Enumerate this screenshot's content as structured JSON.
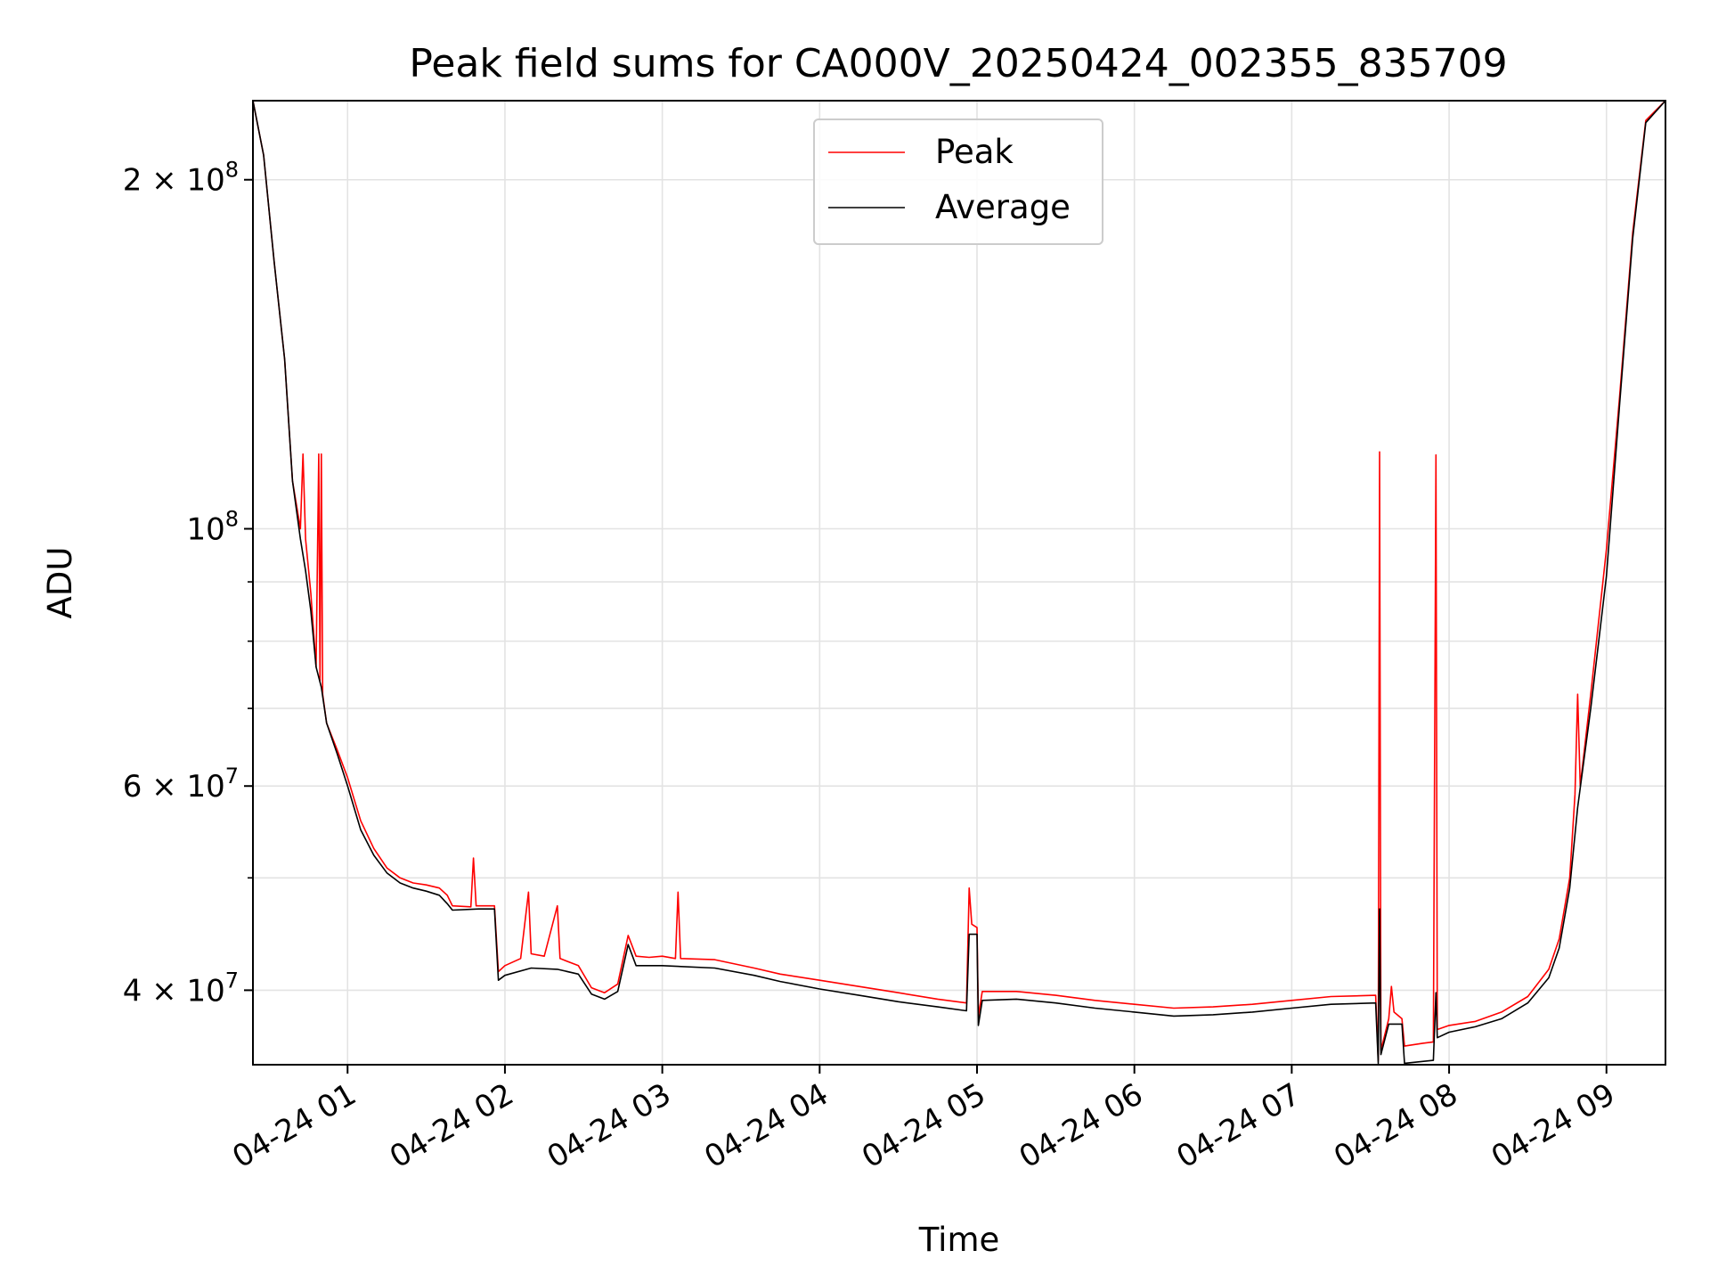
{
  "chart_data": {
    "type": "line",
    "title": "Peak field sums for CA000V_20250424_002355_835709",
    "xlabel": "Time",
    "ylabel": "ADU",
    "yscale": "log",
    "ylim": [
      34500000,
      234000000
    ],
    "xlim": [
      "2025-04-24 00:23:55",
      "2025-04-24 09:22:30"
    ],
    "grid": true,
    "legend_position": "top-center",
    "x_ticks": [
      {
        "value": "2025-04-24 01:00",
        "label": "04-24 01"
      },
      {
        "value": "2025-04-24 02:00",
        "label": "04-24 02"
      },
      {
        "value": "2025-04-24 03:00",
        "label": "04-24 03"
      },
      {
        "value": "2025-04-24 04:00",
        "label": "04-24 04"
      },
      {
        "value": "2025-04-24 05:00",
        "label": "04-24 05"
      },
      {
        "value": "2025-04-24 06:00",
        "label": "04-24 06"
      },
      {
        "value": "2025-04-24 07:00",
        "label": "04-24 07"
      },
      {
        "value": "2025-04-24 08:00",
        "label": "04-24 08"
      },
      {
        "value": "2025-04-24 09:00",
        "label": "04-24 09"
      }
    ],
    "y_ticks": [
      {
        "value": 40000000,
        "base": "4",
        "exp": "7"
      },
      {
        "value": 60000000,
        "base": "6",
        "exp": "7"
      },
      {
        "value": 100000000,
        "base": "",
        "exp": "8"
      },
      {
        "value": 200000000,
        "base": "2",
        "exp": "8"
      }
    ],
    "y_minor_ticks": [
      50000000,
      70000000,
      80000000,
      90000000
    ],
    "series": [
      {
        "name": "Peak",
        "color": "#ff0000",
        "points": [
          [
            "2025-04-24 00:23:55",
            234000000
          ],
          [
            "2025-04-24 00:28:00",
            210000000
          ],
          [
            "2025-04-24 00:32:00",
            170000000
          ],
          [
            "2025-04-24 00:36:00",
            140000000
          ],
          [
            "2025-04-24 00:39:00",
            110000000
          ],
          [
            "2025-04-24 00:42:00",
            100000000
          ],
          [
            "2025-04-24 00:43:00",
            116000000
          ],
          [
            "2025-04-24 00:44:00",
            98000000
          ],
          [
            "2025-04-24 00:46:00",
            88000000
          ],
          [
            "2025-04-24 00:48:00",
            76000000
          ],
          [
            "2025-04-24 00:49:00",
            116000000
          ],
          [
            "2025-04-24 00:49:30",
            74000000
          ],
          [
            "2025-04-24 00:50:00",
            116000000
          ],
          [
            "2025-04-24 00:50:30",
            72000000
          ],
          [
            "2025-04-24 00:52:00",
            68000000
          ],
          [
            "2025-04-24 00:56:00",
            64500000
          ],
          [
            "2025-04-24 01:00:00",
            61000000
          ],
          [
            "2025-04-24 01:05:00",
            56000000
          ],
          [
            "2025-04-24 01:10:00",
            53000000
          ],
          [
            "2025-04-24 01:15:00",
            51000000
          ],
          [
            "2025-04-24 01:20:00",
            50000000
          ],
          [
            "2025-04-24 01:25:00",
            49500000
          ],
          [
            "2025-04-24 01:30:00",
            49300000
          ],
          [
            "2025-04-24 01:35:00",
            49000000
          ],
          [
            "2025-04-24 01:38:00",
            48300000
          ],
          [
            "2025-04-24 01:40:00",
            47300000
          ],
          [
            "2025-04-24 01:47:00",
            47200000
          ],
          [
            "2025-04-24 01:48:00",
            52000000
          ],
          [
            "2025-04-24 01:49:00",
            47300000
          ],
          [
            "2025-04-24 01:56:00",
            47300000
          ],
          [
            "2025-04-24 01:57:30",
            41500000
          ],
          [
            "2025-04-24 02:00:00",
            42000000
          ],
          [
            "2025-04-24 02:06:00",
            42600000
          ],
          [
            "2025-04-24 02:09:00",
            48600000
          ],
          [
            "2025-04-24 02:10:00",
            43000000
          ],
          [
            "2025-04-24 02:15:00",
            42800000
          ],
          [
            "2025-04-24 02:20:00",
            47300000
          ],
          [
            "2025-04-24 02:21:00",
            42600000
          ],
          [
            "2025-04-24 02:28:00",
            42000000
          ],
          [
            "2025-04-24 02:33:00",
            40200000
          ],
          [
            "2025-04-24 02:38:00",
            39800000
          ],
          [
            "2025-04-24 02:43:00",
            40500000
          ],
          [
            "2025-04-24 02:47:00",
            44600000
          ],
          [
            "2025-04-24 02:50:00",
            42800000
          ],
          [
            "2025-04-24 02:55:00",
            42700000
          ],
          [
            "2025-04-24 03:00:00",
            42800000
          ],
          [
            "2025-04-24 03:05:00",
            42600000
          ],
          [
            "2025-04-24 03:06:00",
            48600000
          ],
          [
            "2025-04-24 03:07:00",
            42600000
          ],
          [
            "2025-04-24 03:20:00",
            42500000
          ],
          [
            "2025-04-24 03:35:00",
            41800000
          ],
          [
            "2025-04-24 03:45:00",
            41300000
          ],
          [
            "2025-04-24 04:00:00",
            40800000
          ],
          [
            "2025-04-24 04:15:00",
            40300000
          ],
          [
            "2025-04-24 04:30:00",
            39800000
          ],
          [
            "2025-04-24 04:45:00",
            39300000
          ],
          [
            "2025-04-24 04:56:00",
            39000000
          ],
          [
            "2025-04-24 04:57:00",
            49000000
          ],
          [
            "2025-04-24 04:58:00",
            45600000
          ],
          [
            "2025-04-24 05:00:00",
            45300000
          ],
          [
            "2025-04-24 05:00:30",
            38000000
          ],
          [
            "2025-04-24 05:02:00",
            39900000
          ],
          [
            "2025-04-24 05:15:00",
            39900000
          ],
          [
            "2025-04-24 05:30:00",
            39600000
          ],
          [
            "2025-04-24 05:45:00",
            39200000
          ],
          [
            "2025-04-24 06:00:00",
            38900000
          ],
          [
            "2025-04-24 06:15:00",
            38600000
          ],
          [
            "2025-04-24 06:30:00",
            38700000
          ],
          [
            "2025-04-24 06:45:00",
            38900000
          ],
          [
            "2025-04-24 07:00:00",
            39200000
          ],
          [
            "2025-04-24 07:15:00",
            39500000
          ],
          [
            "2025-04-24 07:32:00",
            39600000
          ],
          [
            "2025-04-24 07:33:00",
            34800000
          ],
          [
            "2025-04-24 07:33:30",
            116500000
          ],
          [
            "2025-04-24 07:34:00",
            35500000
          ],
          [
            "2025-04-24 07:37:00",
            37800000
          ],
          [
            "2025-04-24 07:38:00",
            40300000
          ],
          [
            "2025-04-24 07:39:00",
            38300000
          ],
          [
            "2025-04-24 07:42:00",
            37800000
          ],
          [
            "2025-04-24 07:43:00",
            35800000
          ],
          [
            "2025-04-24 07:50:00",
            36000000
          ],
          [
            "2025-04-24 07:54:00",
            36100000
          ],
          [
            "2025-04-24 07:55:00",
            115800000
          ],
          [
            "2025-04-24 07:55:30",
            37000000
          ],
          [
            "2025-04-24 08:00:00",
            37300000
          ],
          [
            "2025-04-24 08:10:00",
            37600000
          ],
          [
            "2025-04-24 08:20:00",
            38300000
          ],
          [
            "2025-04-24 08:30:00",
            39500000
          ],
          [
            "2025-04-24 08:38:00",
            41700000
          ],
          [
            "2025-04-24 08:42:00",
            44300000
          ],
          [
            "2025-04-24 08:46:00",
            50000000
          ],
          [
            "2025-04-24 08:48:00",
            59000000
          ],
          [
            "2025-04-24 08:49:00",
            72000000
          ],
          [
            "2025-04-24 08:50:00",
            60000000
          ],
          [
            "2025-04-24 08:54:00",
            72000000
          ],
          [
            "2025-04-24 09:00:00",
            96000000
          ],
          [
            "2025-04-24 09:05:00",
            130000000
          ],
          [
            "2025-04-24 09:10:00",
            180000000
          ],
          [
            "2025-04-24 09:15:00",
            225000000
          ],
          [
            "2025-04-24 09:22:30",
            234000000
          ]
        ]
      },
      {
        "name": "Average",
        "color": "#000000",
        "points": [
          [
            "2025-04-24 00:23:55",
            234000000
          ],
          [
            "2025-04-24 00:28:00",
            210000000
          ],
          [
            "2025-04-24 00:32:00",
            170000000
          ],
          [
            "2025-04-24 00:36:00",
            140000000
          ],
          [
            "2025-04-24 00:39:00",
            110000000
          ],
          [
            "2025-04-24 00:42:00",
            98000000
          ],
          [
            "2025-04-24 00:44:00",
            92000000
          ],
          [
            "2025-04-24 00:46:00",
            85000000
          ],
          [
            "2025-04-24 00:48:00",
            76000000
          ],
          [
            "2025-04-24 00:50:00",
            73000000
          ],
          [
            "2025-04-24 00:52:00",
            68000000
          ],
          [
            "2025-04-24 00:56:00",
            64000000
          ],
          [
            "2025-04-24 01:00:00",
            60000000
          ],
          [
            "2025-04-24 01:05:00",
            55000000
          ],
          [
            "2025-04-24 01:10:00",
            52300000
          ],
          [
            "2025-04-24 01:15:00",
            50500000
          ],
          [
            "2025-04-24 01:20:00",
            49500000
          ],
          [
            "2025-04-24 01:25:00",
            49000000
          ],
          [
            "2025-04-24 01:30:00",
            48700000
          ],
          [
            "2025-04-24 01:35:00",
            48300000
          ],
          [
            "2025-04-24 01:38:00",
            47500000
          ],
          [
            "2025-04-24 01:40:00",
            46900000
          ],
          [
            "2025-04-24 01:50:00",
            47000000
          ],
          [
            "2025-04-24 01:56:00",
            47000000
          ],
          [
            "2025-04-24 01:57:30",
            40800000
          ],
          [
            "2025-04-24 02:00:00",
            41200000
          ],
          [
            "2025-04-24 02:10:00",
            41800000
          ],
          [
            "2025-04-24 02:20:00",
            41700000
          ],
          [
            "2025-04-24 02:28:00",
            41300000
          ],
          [
            "2025-04-24 02:33:00",
            39700000
          ],
          [
            "2025-04-24 02:38:00",
            39300000
          ],
          [
            "2025-04-24 02:43:00",
            39900000
          ],
          [
            "2025-04-24 02:47:00",
            43800000
          ],
          [
            "2025-04-24 02:50:00",
            42000000
          ],
          [
            "2025-04-24 03:00:00",
            42000000
          ],
          [
            "2025-04-24 03:20:00",
            41800000
          ],
          [
            "2025-04-24 03:35:00",
            41200000
          ],
          [
            "2025-04-24 03:45:00",
            40700000
          ],
          [
            "2025-04-24 04:00:00",
            40100000
          ],
          [
            "2025-04-24 04:15:00",
            39600000
          ],
          [
            "2025-04-24 04:30:00",
            39100000
          ],
          [
            "2025-04-24 04:45:00",
            38700000
          ],
          [
            "2025-04-24 04:56:00",
            38400000
          ],
          [
            "2025-04-24 04:57:00",
            44700000
          ],
          [
            "2025-04-24 05:00:00",
            44700000
          ],
          [
            "2025-04-24 05:00:30",
            37300000
          ],
          [
            "2025-04-24 05:02:00",
            39200000
          ],
          [
            "2025-04-24 05:15:00",
            39300000
          ],
          [
            "2025-04-24 05:30:00",
            39000000
          ],
          [
            "2025-04-24 05:45:00",
            38600000
          ],
          [
            "2025-04-24 06:00:00",
            38300000
          ],
          [
            "2025-04-24 06:15:00",
            38000000
          ],
          [
            "2025-04-24 06:30:00",
            38100000
          ],
          [
            "2025-04-24 06:45:00",
            38300000
          ],
          [
            "2025-04-24 07:00:00",
            38600000
          ],
          [
            "2025-04-24 07:15:00",
            38900000
          ],
          [
            "2025-04-24 07:32:00",
            39000000
          ],
          [
            "2025-04-24 07:33:00",
            34600000
          ],
          [
            "2025-04-24 07:33:30",
            47000000
          ],
          [
            "2025-04-24 07:34:00",
            35200000
          ],
          [
            "2025-04-24 07:37:00",
            37400000
          ],
          [
            "2025-04-24 07:42:00",
            37400000
          ],
          [
            "2025-04-24 07:43:00",
            34600000
          ],
          [
            "2025-04-24 07:54:00",
            34800000
          ],
          [
            "2025-04-24 07:55:00",
            39800000
          ],
          [
            "2025-04-24 07:55:30",
            36400000
          ],
          [
            "2025-04-24 08:00:00",
            36800000
          ],
          [
            "2025-04-24 08:10:00",
            37200000
          ],
          [
            "2025-04-24 08:20:00",
            37800000
          ],
          [
            "2025-04-24 08:30:00",
            39000000
          ],
          [
            "2025-04-24 08:38:00",
            41000000
          ],
          [
            "2025-04-24 08:42:00",
            43500000
          ],
          [
            "2025-04-24 08:46:00",
            49000000
          ],
          [
            "2025-04-24 08:49:00",
            57500000
          ],
          [
            "2025-04-24 08:54:00",
            70000000
          ],
          [
            "2025-04-24 09:00:00",
            91000000
          ],
          [
            "2025-04-24 09:05:00",
            128000000
          ],
          [
            "2025-04-24 09:10:00",
            178000000
          ],
          [
            "2025-04-24 09:15:00",
            224000000
          ],
          [
            "2025-04-24 09:22:30",
            234000000
          ]
        ]
      }
    ]
  }
}
